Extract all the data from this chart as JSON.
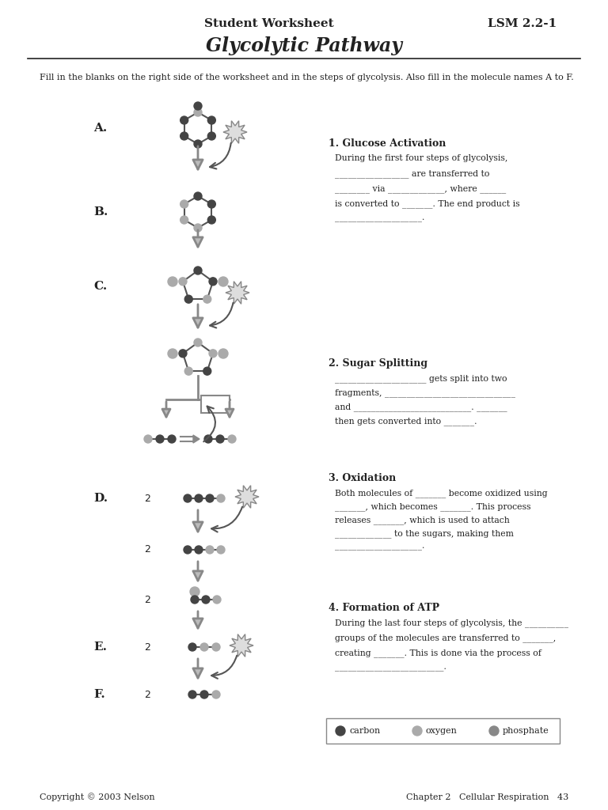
{
  "title": "Glycolytic Pathway",
  "header_left": "Student Worksheet",
  "header_right": "LSM 2.2-1",
  "instruction": "Fill in the blanks on the right side of the worksheet and in the steps of glycolysis. Also fill in the molecule names A to F.",
  "bg_color": "#ffffff",
  "text_color": "#000000",
  "footer_left": "Copyright © 2003 Nelson",
  "footer_right": "Chapter 2   Cellular Respiration   43",
  "section1_title": "1. Glucose Activation",
  "section1_text": [
    "During the first four steps of glycolysis,",
    "_________________ are transferred to",
    "________ via _____________, where ______",
    "is converted to _______. The end product is",
    "____________________."
  ],
  "section2_title": "2. Sugar Splitting",
  "section2_text": [
    "_____________________ gets split into two",
    "fragments, ______________________________",
    "and ___________________________. _______",
    "then gets converted into _______."
  ],
  "section3_title": "3. Oxidation",
  "section3_text": [
    "Both molecules of _______ become oxidized using",
    "_______, which becomes _______. This process",
    "releases _______, which is used to attach",
    "_____________ to the sugars, making them",
    "____________________."
  ],
  "section4_title": "4. Formation of ATP",
  "section4_text": [
    "During the last four steps of glycolysis, the __________",
    "groups of the molecules are transferred to _______,",
    "creating _______. This is done via the process of",
    "_________________________."
  ],
  "labels": [
    "A.",
    "B.",
    "C.",
    "D.",
    "E.",
    "F."
  ],
  "legend_items": [
    {
      "label": "carbon",
      "color": "#444444"
    },
    {
      "label": "oxygen",
      "color": "#aaaaaa"
    },
    {
      "label": "phosphate",
      "color": "#888888"
    }
  ]
}
